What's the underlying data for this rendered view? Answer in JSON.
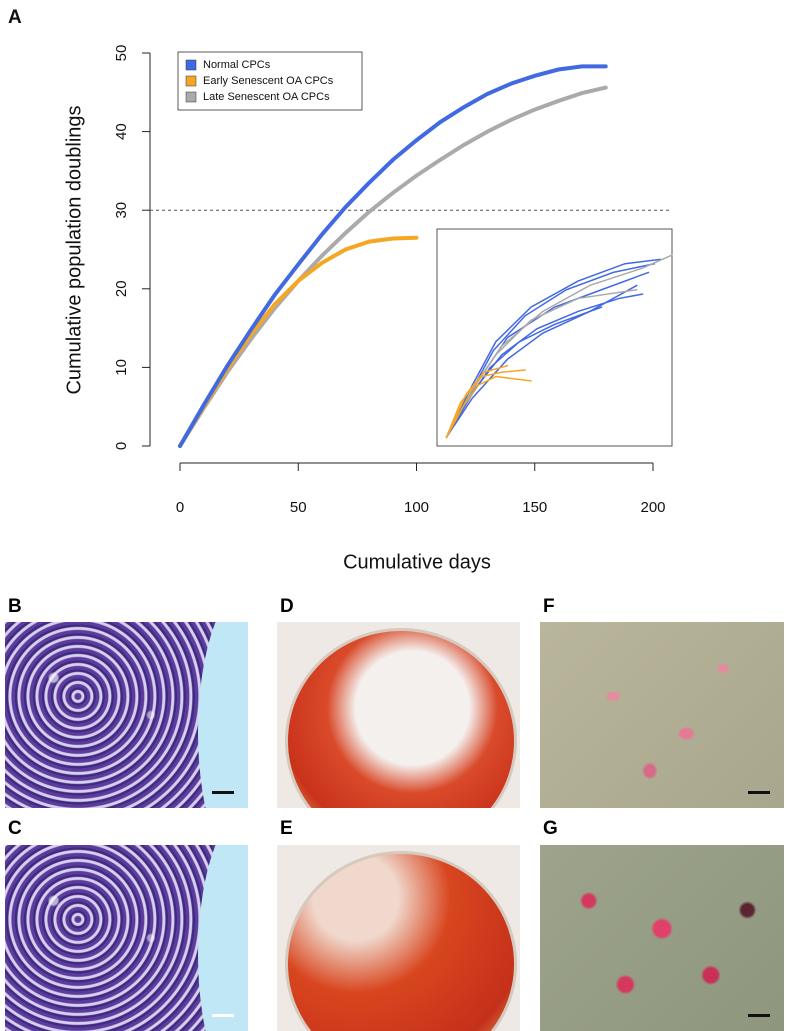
{
  "panel_labels": [
    "A",
    "B",
    "C",
    "D",
    "E",
    "F",
    "G"
  ],
  "chart_data": {
    "type": "line",
    "xlabel": "Cumulative days",
    "ylabel": "Cumulative population doublings",
    "xlim": [
      0,
      200
    ],
    "ylim": [
      0,
      50
    ],
    "xticks": [
      0,
      50,
      100,
      150,
      200
    ],
    "yticks": [
      0,
      10,
      20,
      30,
      40,
      50
    ],
    "hline": 30,
    "legend": "top-left",
    "series": [
      {
        "name": "Normal CPCs",
        "color": "#4169e1",
        "x": [
          0,
          10,
          20,
          30,
          40,
          50,
          60,
          70,
          80,
          90,
          100,
          110,
          120,
          130,
          140,
          150,
          160,
          170,
          180
        ],
        "values": [
          0,
          5.2,
          10.2,
          14.8,
          19.2,
          23.1,
          26.9,
          30.4,
          33.5,
          36.4,
          38.9,
          41.2,
          43.1,
          44.8,
          46.1,
          47.1,
          47.9,
          48.3,
          48.3
        ]
      },
      {
        "name": "Early Senescent OA CPCs",
        "color": "#f5a623",
        "x": [
          0,
          10,
          20,
          30,
          40,
          50,
          60,
          70,
          80,
          90,
          100
        ],
        "values": [
          0,
          5,
          9.8,
          14.2,
          18,
          21,
          23.3,
          25,
          26,
          26.4,
          26.5
        ]
      },
      {
        "name": "Late Senescent OA CPCs",
        "color": "#aaaaaa",
        "x": [
          0,
          10,
          20,
          30,
          40,
          50,
          60,
          70,
          80,
          90,
          100,
          110,
          120,
          130,
          140,
          150,
          160,
          170,
          180
        ],
        "values": [
          0,
          4.8,
          9.4,
          13.6,
          17.5,
          21,
          24.2,
          27.1,
          29.8,
          32.2,
          34.4,
          36.4,
          38.3,
          40,
          41.5,
          42.8,
          43.9,
          44.9,
          45.6
        ]
      }
    ],
    "inset": {
      "xlim": [
        0,
        200
      ],
      "ylim": [
        0,
        50
      ],
      "series": [
        {
          "color": "#4169e1",
          "x": [
            8,
            30,
            50,
            80,
            120,
            160,
            190
          ],
          "values": [
            2,
            14,
            24,
            32,
            38,
            42,
            43
          ]
        },
        {
          "color": "#4169e1",
          "x": [
            8,
            28,
            48,
            75,
            110,
            150,
            185
          ],
          "values": [
            2,
            12,
            22,
            30,
            36,
            40,
            42
          ]
        },
        {
          "color": "#4169e1",
          "x": [
            8,
            32,
            55,
            85,
            120,
            155,
            175
          ],
          "values": [
            2,
            13,
            21,
            27,
            31,
            34,
            35
          ]
        },
        {
          "color": "#4169e1",
          "x": [
            8,
            30,
            60,
            90,
            130,
            170
          ],
          "values": [
            2,
            11,
            20,
            26,
            31,
            37
          ]
        },
        {
          "color": "#4169e1",
          "x": [
            8,
            35,
            60,
            100,
            140,
            180
          ],
          "values": [
            2,
            15,
            25,
            32,
            36,
            40
          ]
        },
        {
          "color": "#4169e1",
          "x": [
            8,
            25,
            45,
            70,
            100,
            140
          ],
          "values": [
            2,
            10,
            18,
            24,
            28,
            32
          ]
        },
        {
          "color": "#aaaaaa",
          "x": [
            8,
            30,
            55,
            90,
            130,
            175,
            200
          ],
          "values": [
            2,
            13,
            23,
            31,
            37,
            41,
            44
          ]
        },
        {
          "color": "#aaaaaa",
          "x": [
            8,
            28,
            50,
            80,
            120,
            170
          ],
          "values": [
            2,
            12,
            21,
            29,
            34,
            36
          ]
        },
        {
          "color": "#f5a623",
          "x": [
            8,
            25,
            40,
            60
          ],
          "values": [
            2,
            12,
            17,
            18.5
          ]
        },
        {
          "color": "#f5a623",
          "x": [
            8,
            22,
            35,
            50,
            80
          ],
          "values": [
            2,
            9,
            14,
            16,
            15
          ]
        },
        {
          "color": "#f5a623",
          "x": [
            8,
            20,
            38,
            55,
            75
          ],
          "values": [
            2,
            10,
            16,
            17,
            17.5
          ]
        }
      ]
    }
  }
}
